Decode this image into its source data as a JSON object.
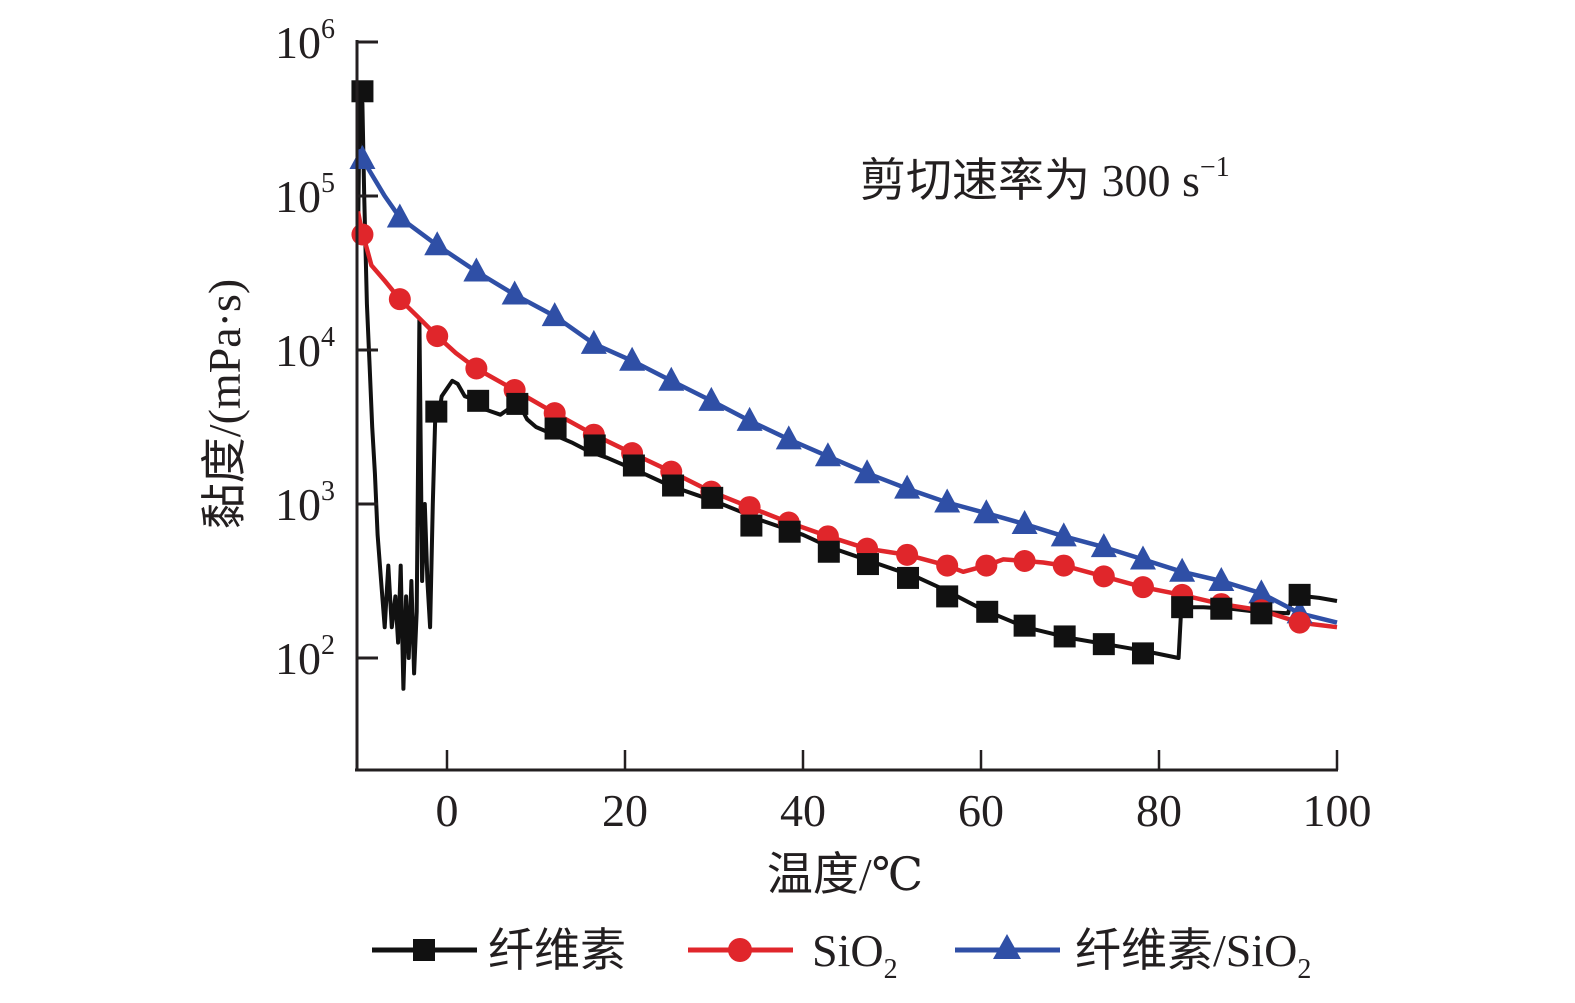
{
  "chart_data": {
    "type": "line",
    "title": "",
    "annotation": {
      "text": "剪切速率为 300 s",
      "superscript": "−1"
    },
    "xlabel": "温度/℃",
    "ylabel": "黏度/(mPa·s)",
    "xlim": [
      -10.1,
      100
    ],
    "ylim_log10": [
      1.27,
      6
    ],
    "yscale": "log",
    "grid": false,
    "x_ticks": [
      0,
      20,
      40,
      60,
      80,
      100
    ],
    "x_tick_labels": [
      "0",
      "20",
      "40",
      "60",
      "80",
      "100"
    ],
    "y_ticks_log10": [
      2,
      3,
      4,
      5,
      6
    ],
    "y_tick_labels": [
      {
        "base": "10",
        "exp": "2"
      },
      {
        "base": "10",
        "exp": "3"
      },
      {
        "base": "10",
        "exp": "4"
      },
      {
        "base": "10",
        "exp": "5"
      },
      {
        "base": "10",
        "exp": "6"
      }
    ],
    "legend_position": "bottom",
    "series": [
      {
        "name": "纤维素",
        "name_parts": {
          "main": "纤维素",
          "sub": ""
        },
        "color": "#111111",
        "marker": "square",
        "line_x": [
          -10,
          -9.8,
          -9.5,
          -9.3,
          -9,
          -8.7,
          -8.4,
          -8.1,
          -7.8,
          -7.4,
          -7,
          -6.6,
          -6.2,
          -5.8,
          -5.5,
          -5.2,
          -4.9,
          -4.6,
          -4.3,
          -4.0,
          -3.7,
          -3.4,
          -3.1,
          -2.8,
          -2.5,
          -2.2,
          -1.9,
          -1.6,
          -1.3,
          -1.0,
          -0.6,
          0,
          0.6,
          1.2,
          2,
          3,
          4,
          5,
          6,
          7,
          8,
          9,
          10,
          12,
          14,
          16,
          18,
          20,
          22,
          25,
          28,
          30,
          33,
          35,
          38,
          40,
          43,
          45,
          48,
          50,
          53,
          56,
          60,
          65,
          70,
          75,
          78,
          82.2,
          82.5,
          85,
          88,
          91,
          94.5,
          95,
          98,
          100
        ],
        "line_y": [
          4.7,
          5.7,
          5.6,
          5.0,
          4.3,
          3.9,
          3.5,
          3.2,
          2.8,
          2.5,
          2.2,
          2.6,
          2.2,
          2.4,
          2.1,
          2.6,
          1.8,
          2.4,
          2.0,
          2.5,
          1.9,
          2.3,
          4.2,
          2.5,
          3.0,
          2.5,
          2.2,
          3.0,
          3.6,
          3.55,
          3.7,
          3.75,
          3.8,
          3.78,
          3.7,
          3.68,
          3.62,
          3.6,
          3.58,
          3.62,
          3.66,
          3.55,
          3.5,
          3.45,
          3.4,
          3.34,
          3.3,
          3.25,
          3.2,
          3.12,
          3.06,
          3.02,
          2.95,
          2.9,
          2.84,
          2.8,
          2.72,
          2.68,
          2.62,
          2.58,
          2.52,
          2.44,
          2.32,
          2.2,
          2.13,
          2.08,
          2.05,
          2.0,
          2.33,
          2.33,
          2.32,
          2.3,
          2.29,
          2.41,
          2.39,
          2.37
        ],
        "x": [
          -9.5,
          -1.2,
          3.5,
          7.9,
          12.2,
          16.6,
          21.0,
          25.4,
          29.8,
          34.2,
          38.5,
          42.9,
          47.3,
          51.8,
          56.2,
          60.7,
          64.9,
          69.4,
          73.8,
          78.2,
          82.6,
          87.0,
          91.5,
          95.8
        ],
        "y_log10": [
          5.68,
          3.6,
          3.67,
          3.65,
          3.49,
          3.38,
          3.25,
          3.12,
          3.04,
          2.86,
          2.82,
          2.69,
          2.61,
          2.52,
          2.4,
          2.3,
          2.21,
          2.14,
          2.09,
          2.03,
          2.33,
          2.32,
          2.29,
          2.41
        ]
      },
      {
        "name": "SiO2",
        "name_parts": {
          "main": "SiO",
          "sub": "2"
        },
        "color": "#e0262b",
        "marker": "circle",
        "line_x": [
          -10,
          -9.5,
          -9.2,
          -8.5,
          -7,
          -5.3,
          -3,
          -1.1,
          1,
          3.3,
          7.6,
          12.1,
          16.5,
          20.8,
          25.2,
          29.7,
          34.0,
          38.4,
          42.8,
          47.2,
          51.7,
          56.2,
          58,
          60.6,
          62.5,
          64.9,
          67,
          69.3,
          73.8,
          78.2,
          82.6,
          87.0,
          91.5,
          95.8,
          100
        ],
        "line_y": [
          4.9,
          4.75,
          4.7,
          4.55,
          4.45,
          4.33,
          4.2,
          4.09,
          3.98,
          3.88,
          3.74,
          3.59,
          3.45,
          3.33,
          3.21,
          3.08,
          2.98,
          2.88,
          2.79,
          2.71,
          2.67,
          2.6,
          2.56,
          2.6,
          2.64,
          2.63,
          2.62,
          2.6,
          2.53,
          2.46,
          2.41,
          2.35,
          2.31,
          2.23,
          2.2
        ],
        "x": [
          -9.5,
          -5.3,
          -1.1,
          3.3,
          7.6,
          12.1,
          16.5,
          20.8,
          25.2,
          29.7,
          34.0,
          38.4,
          42.8,
          47.2,
          51.7,
          56.2,
          60.6,
          64.9,
          69.3,
          73.8,
          78.2,
          82.6,
          87.0,
          91.5,
          95.8
        ],
        "y_log10": [
          4.75,
          4.33,
          4.09,
          3.88,
          3.74,
          3.59,
          3.45,
          3.33,
          3.21,
          3.08,
          2.98,
          2.88,
          2.79,
          2.71,
          2.67,
          2.6,
          2.6,
          2.63,
          2.6,
          2.53,
          2.46,
          2.41,
          2.35,
          2.31,
          2.23
        ]
      },
      {
        "name": "纤维素/SiO2",
        "name_parts": {
          "main": "纤维素/SiO",
          "sub": "2"
        },
        "color": "#2f4fa6",
        "marker": "triangle",
        "line_x": [
          -10,
          -9.5,
          -7,
          -5.3,
          -1.1,
          3.3,
          7.6,
          12.1,
          16.5,
          20.8,
          25.2,
          29.7,
          34.0,
          38.4,
          42.8,
          47.2,
          51.7,
          56.2,
          60.6,
          64.9,
          69.3,
          73.8,
          78.2,
          82.6,
          87.0,
          91.5,
          95.8,
          100
        ],
        "line_y": [
          5.3,
          5.24,
          5.0,
          4.86,
          4.68,
          4.51,
          4.36,
          4.22,
          4.04,
          3.93,
          3.8,
          3.67,
          3.54,
          3.42,
          3.31,
          3.2,
          3.1,
          3.01,
          2.94,
          2.87,
          2.79,
          2.72,
          2.64,
          2.56,
          2.5,
          2.42,
          2.29,
          2.23
        ],
        "x": [
          -9.5,
          -5.3,
          -1.1,
          3.3,
          7.6,
          12.1,
          16.5,
          20.8,
          25.2,
          29.7,
          34.0,
          38.4,
          42.8,
          47.2,
          51.7,
          56.2,
          60.6,
          64.9,
          69.3,
          73.8,
          78.2,
          82.6,
          87.0,
          91.5,
          95.8
        ],
        "y_log10": [
          5.24,
          4.86,
          4.68,
          4.51,
          4.36,
          4.22,
          4.04,
          3.93,
          3.8,
          3.67,
          3.54,
          3.42,
          3.31,
          3.2,
          3.1,
          3.01,
          2.94,
          2.87,
          2.79,
          2.72,
          2.64,
          2.56,
          2.5,
          2.42,
          2.29
        ]
      }
    ]
  }
}
